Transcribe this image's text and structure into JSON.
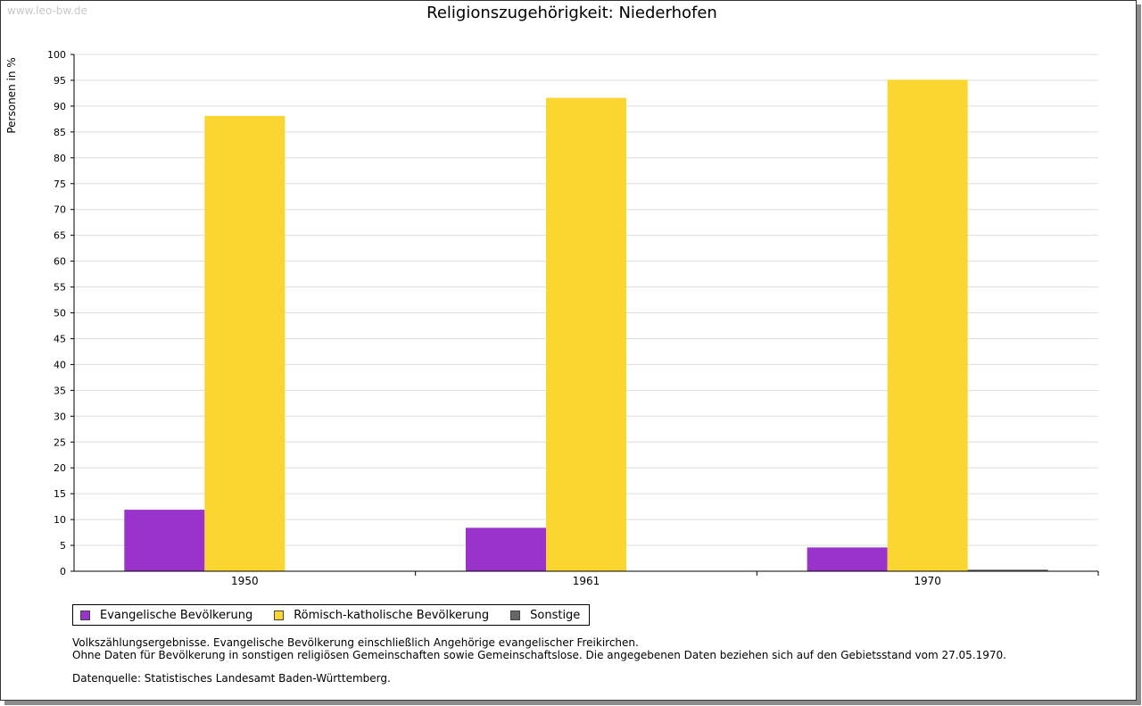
{
  "watermark": "www.leo-bw.de",
  "chart_data": {
    "type": "bar",
    "title": "Religionszugehörigkeit: Niederhofen",
    "ylabel": "Personen in %",
    "xlabel": "",
    "ylim": [
      0,
      100
    ],
    "yticks": [
      0,
      5,
      10,
      15,
      20,
      25,
      30,
      35,
      40,
      45,
      50,
      55,
      60,
      65,
      70,
      75,
      80,
      85,
      90,
      95,
      100
    ],
    "grid": true,
    "legend_position": "bottom-left",
    "categories": [
      "1950",
      "1961",
      "1970"
    ],
    "series": [
      {
        "name": "Evangelische Bevölkerung",
        "color": "#9933cc",
        "values": [
          11.9,
          8.4,
          4.6
        ]
      },
      {
        "name": "Römisch-katholische Bevölkerung",
        "color": "#fcd630",
        "values": [
          88.1,
          91.6,
          95.1
        ]
      },
      {
        "name": "Sonstige",
        "color": "#666666",
        "values": [
          0,
          0,
          0.3
        ]
      }
    ]
  },
  "notes": {
    "line1": "Volkszählungsergebnisse. Evangelische Bevölkerung einschließlich Angehörige evangelischer Freikirchen.",
    "line2": "Ohne Daten für Bevölkerung in sonstigen religiösen Gemeinschaften sowie Gemeinschaftslose. Die angegebenen Daten beziehen sich auf den Gebietsstand vom 27.05.1970.",
    "source": "Datenquelle: Statistisches Landesamt Baden-Württemberg."
  }
}
